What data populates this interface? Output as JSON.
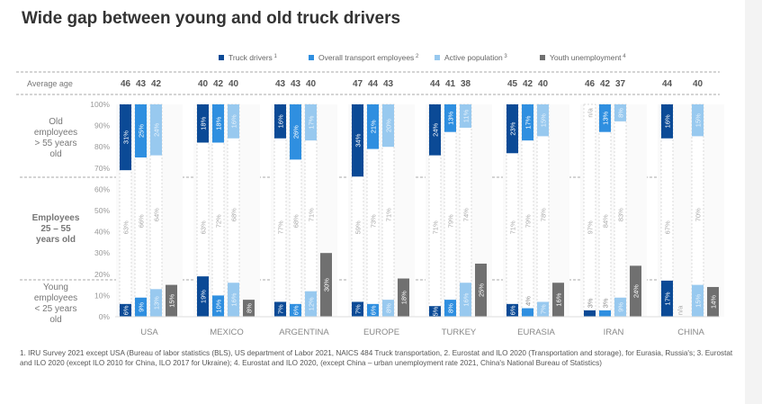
{
  "title": "Wide gap between young and old truck drivers",
  "footnote": "1. IRU Survey 2021 except USA (Bureau of labor statistics (BLS), US department of Labor 2021, NAICS 484 Truck transportation, 2. Eurostat and ILO 2020 (Transportation and storage), for Eurasia, Russia's; 3. Eurostat and ILO 2020 (except ILO 2010 for China, ILO 2017 for Ukraine); 4. Eurostat and ILO 2020, (except China – urban unemployment rate 2021, China's National Bureau of Statistics)",
  "chart_data": {
    "type": "bar",
    "average_age_label": "Average age",
    "row_labels": [
      "Old employees > 55 years old",
      "Employees 25 – 55 years old",
      "Young employees < 25 years old"
    ],
    "yticks": [
      "100%",
      "90%",
      "80%",
      "70%",
      "60%",
      "50%",
      "40%",
      "30%",
      "20%",
      "10%",
      "0%"
    ],
    "ylim": [
      0,
      100
    ],
    "legend_position": "top",
    "series": [
      {
        "name": "Truck drivers",
        "sup": "1",
        "color": "#0b4a96"
      },
      {
        "name": "Overall transport employees",
        "sup": "2",
        "color": "#2f8fe0"
      },
      {
        "name": "Active population",
        "sup": "3",
        "color": "#98c9ef"
      },
      {
        "name": "Youth unemployment",
        "sup": "4",
        "color": "#707070"
      }
    ],
    "categories": [
      "USA",
      "MEXICO",
      "ARGENTINA",
      "EUROPE",
      "TURKEY",
      "EURASIA",
      "IRAN",
      "CHINA"
    ],
    "average_age": [
      [
        "46",
        "43",
        "42"
      ],
      [
        "40",
        "42",
        "40"
      ],
      [
        "43",
        "43",
        "40"
      ],
      [
        "47",
        "44",
        "43"
      ],
      [
        "44",
        "41",
        "38"
      ],
      [
        "45",
        "42",
        "40"
      ],
      [
        "46",
        "42",
        "37"
      ],
      [
        "44",
        null,
        "40"
      ]
    ],
    "old": [
      [
        31,
        25,
        24
      ],
      [
        18,
        18,
        16
      ],
      [
        16,
        26,
        17
      ],
      [
        34,
        21,
        20
      ],
      [
        24,
        13,
        11
      ],
      [
        23,
        17,
        15
      ],
      [
        null,
        13,
        8
      ],
      [
        16,
        null,
        15
      ]
    ],
    "middle": [
      [
        63,
        66,
        64
      ],
      [
        63,
        72,
        68
      ],
      [
        77,
        68,
        71
      ],
      [
        59,
        73,
        71
      ],
      [
        71,
        79,
        74
      ],
      [
        71,
        79,
        78
      ],
      [
        97,
        84,
        83
      ],
      [
        67,
        null,
        70
      ]
    ],
    "young": [
      [
        6,
        9,
        13
      ],
      [
        19,
        10,
        16
      ],
      [
        7,
        6,
        12
      ],
      [
        7,
        6,
        8
      ],
      [
        5,
        8,
        16
      ],
      [
        6,
        4,
        7
      ],
      [
        3,
        3,
        9
      ],
      [
        17,
        null,
        15
      ]
    ],
    "youth_unemployment": [
      15,
      8,
      30,
      18,
      25,
      16,
      24,
      14
    ],
    "na_label": "n/a"
  }
}
